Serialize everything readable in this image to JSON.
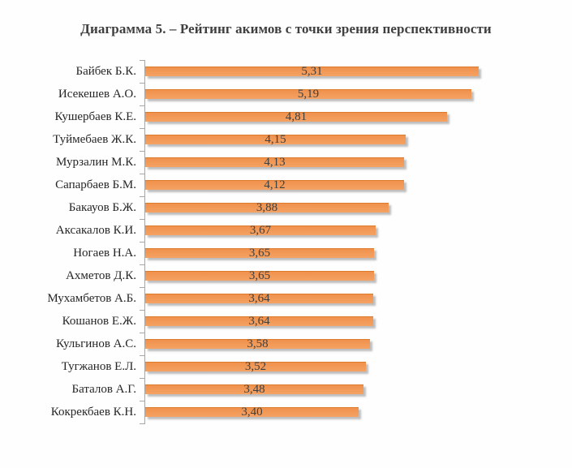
{
  "title": "Диаграмма 5. – Рейтинг акимов с точки зрения перспективности",
  "chart_data": {
    "type": "bar",
    "orientation": "horizontal",
    "title": "Диаграмма 5. – Рейтинг акимов с точки зрения перспективности",
    "categories": [
      "Байбек Б.К.",
      "Исекешев А.О.",
      "Кушербаев К.Е.",
      "Туймебаев Ж.К.",
      "Мурзалин М.К.",
      "Сапарбаев Б.М.",
      "Бакауов Б.Ж.",
      "Аксакалов К.И.",
      "Ногаев Н.А.",
      "Ахметов Д.К.",
      "Мухамбетов А.Б.",
      "Кошанов Е.Ж.",
      "Кульгинов А.С.",
      "Тугжанов Е.Л.",
      "Баталов А.Г.",
      "Кокрекбаев К.Н."
    ],
    "values": [
      5.31,
      5.19,
      4.81,
      4.15,
      4.13,
      4.12,
      3.88,
      3.67,
      3.65,
      3.65,
      3.64,
      3.64,
      3.58,
      3.52,
      3.48,
      3.4
    ],
    "value_labels": [
      "5,31",
      "5,19",
      "4,81",
      "4,15",
      "4,13",
      "4,12",
      "3,88",
      "3,67",
      "3,65",
      "3,65",
      "3,64",
      "3,64",
      "3,58",
      "3,52",
      "3,48",
      "3,40"
    ],
    "xlabel": "",
    "ylabel": "",
    "value_axis_labels_visible": false,
    "gridlines": false,
    "legend": false,
    "data_label_position": "inside-center",
    "bar_color": "#F0914D",
    "bar_edge_color": "#DD7C2D",
    "bar_light_color": "#F4A263",
    "axis_color": "#A6A6A6",
    "label_color": "#262626",
    "value_label_color": "#404040",
    "title_color": "#3F3F3F",
    "background_color": "#FEFEFE"
  }
}
